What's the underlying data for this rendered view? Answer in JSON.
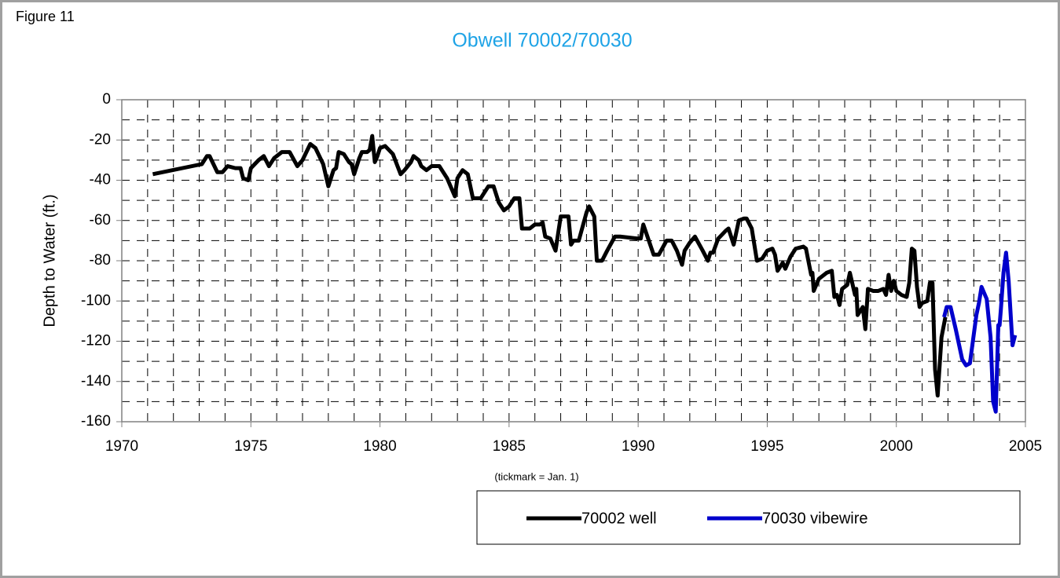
{
  "chart_data": {
    "type": "line",
    "label": "Figure 11",
    "title": "Obwell 70002/70030",
    "y_label": "Depth to Water  (ft.)",
    "x_note": "(tickmark = Jan. 1)",
    "xlim": [
      1970,
      2005
    ],
    "xticks": [
      1970,
      1975,
      1980,
      1985,
      1990,
      1995,
      2000,
      2005
    ],
    "ylim": [
      -160,
      0
    ],
    "yticks": [
      0,
      -20,
      -40,
      -60,
      -80,
      -100,
      -120,
      -140,
      -160
    ],
    "grid": true,
    "minor_grid": true,
    "legend": "bottom-right",
    "series": [
      {
        "name": "70002 well",
        "color": "#000000",
        "x": [
          1971.2,
          1973.1,
          1973.3,
          1973.4,
          1973.7,
          1973.9,
          1974.1,
          1974.4,
          1974.6,
          1974.7,
          1974.9,
          1975.0,
          1975.3,
          1975.5,
          1975.7,
          1975.9,
          1976.2,
          1976.5,
          1976.8,
          1977.0,
          1977.3,
          1977.5,
          1977.8,
          1978.0,
          1978.2,
          1978.3,
          1978.4,
          1978.6,
          1978.8,
          1978.9,
          1979.0,
          1979.2,
          1979.3,
          1979.5,
          1979.6,
          1979.7,
          1979.8,
          1979.9,
          1980.0,
          1980.2,
          1980.5,
          1980.8,
          1980.95,
          1981.2,
          1981.3,
          1981.5,
          1981.6,
          1981.8,
          1982.0,
          1982.3,
          1982.6,
          1982.9,
          1983.0,
          1983.2,
          1983.4,
          1983.6,
          1983.9,
          1984.2,
          1984.4,
          1984.6,
          1984.8,
          1985.0,
          1985.2,
          1985.4,
          1985.5,
          1985.8,
          1986.0,
          1986.2,
          1986.3,
          1986.4,
          1986.6,
          1986.8,
          1987.0,
          1987.3,
          1987.4,
          1987.5,
          1987.7,
          1988.0,
          1988.1,
          1988.3,
          1988.4,
          1988.6,
          1988.8,
          1989.1,
          1989.3,
          1990.0,
          1990.1,
          1990.2,
          1990.6,
          1990.8,
          1991.1,
          1991.3,
          1991.5,
          1991.7,
          1991.8,
          1992.0,
          1992.2,
          1992.5,
          1992.7,
          1992.8,
          1992.9,
          1993.1,
          1993.4,
          1993.5,
          1993.7,
          1993.9,
          1994.1,
          1994.2,
          1994.4,
          1994.6,
          1994.8,
          1995.0,
          1995.2,
          1995.3,
          1995.4,
          1995.6,
          1995.7,
          1995.9,
          1996.1,
          1996.4,
          1996.5,
          1996.7,
          1996.75,
          1996.8,
          1997.0,
          1997.3,
          1997.5,
          1997.6,
          1997.7,
          1997.8,
          1997.9,
          1998.1,
          1998.2,
          1998.4,
          1998.45,
          1998.5,
          1998.7,
          1998.8,
          1998.9,
          1999.1,
          1999.3,
          1999.5,
          1999.6,
          1999.7,
          1999.8,
          1999.9,
          2000.0,
          2000.2,
          2000.4,
          2000.5,
          2000.6,
          2000.7,
          2000.8,
          2000.9,
          2001.0,
          2001.2,
          2001.3,
          2001.4,
          2001.5,
          2001.6,
          2001.75,
          2001.9
        ],
        "values": [
          -37,
          -32,
          -28,
          -28,
          -36,
          -36,
          -33,
          -34,
          -34,
          -39,
          -40,
          -34,
          -30,
          -28,
          -33,
          -29,
          -26,
          -26,
          -33,
          -30,
          -22,
          -24,
          -32,
          -43,
          -35,
          -34,
          -26,
          -27,
          -31,
          -32,
          -37,
          -29,
          -26,
          -26,
          -25,
          -18,
          -31,
          -28,
          -24,
          -23,
          -27,
          -37,
          -35,
          -31,
          -28,
          -30,
          -33,
          -35,
          -33,
          -33,
          -39,
          -48,
          -39,
          -35,
          -37,
          -49,
          -49,
          -43,
          -43,
          -51,
          -55,
          -53,
          -49,
          -49,
          -64,
          -64,
          -62,
          -62,
          -61,
          -68,
          -69,
          -75,
          -58,
          -58,
          -72,
          -70,
          -70,
          -56,
          -53,
          -58,
          -80,
          -80,
          -75,
          -68,
          -68,
          -69,
          -69,
          -62,
          -77,
          -77,
          -70,
          -70,
          -75,
          -82,
          -75,
          -71,
          -68,
          -75,
          -80,
          -76,
          -76,
          -69,
          -65,
          -64,
          -72,
          -60,
          -59,
          -59,
          -64,
          -80,
          -79,
          -75,
          -74,
          -77,
          -85,
          -81,
          -84,
          -78,
          -74,
          -73,
          -74,
          -87,
          -86,
          -95,
          -89,
          -86,
          -85,
          -98,
          -97,
          -102,
          -94,
          -92,
          -86,
          -97,
          -94,
          -107,
          -103,
          -114,
          -94,
          -95,
          -95,
          -94,
          -97,
          -87,
          -95,
          -90,
          -95,
          -97,
          -98,
          -91,
          -74,
          -75,
          -93,
          -103,
          -101,
          -100,
          -91,
          -91,
          -134,
          -147,
          -118,
          -108
        ]
      },
      {
        "name": "70030 vibewire",
        "color": "#0000cc",
        "x": [
          2001.85,
          2001.95,
          2002.1,
          2002.3,
          2002.55,
          2002.7,
          2002.85,
          2003.1,
          2003.2,
          2003.3,
          2003.5,
          2003.65,
          2003.75,
          2003.85,
          2003.95,
          2004.0,
          2004.05,
          2004.15,
          2004.25,
          2004.35,
          2004.5,
          2004.6
        ],
        "values": [
          -108,
          -103,
          -103,
          -114,
          -129,
          -132,
          -131,
          -107,
          -101,
          -93,
          -99,
          -118,
          -150,
          -155,
          -112,
          -112,
          -104,
          -86,
          -76,
          -90,
          -122,
          -117
        ]
      }
    ]
  }
}
